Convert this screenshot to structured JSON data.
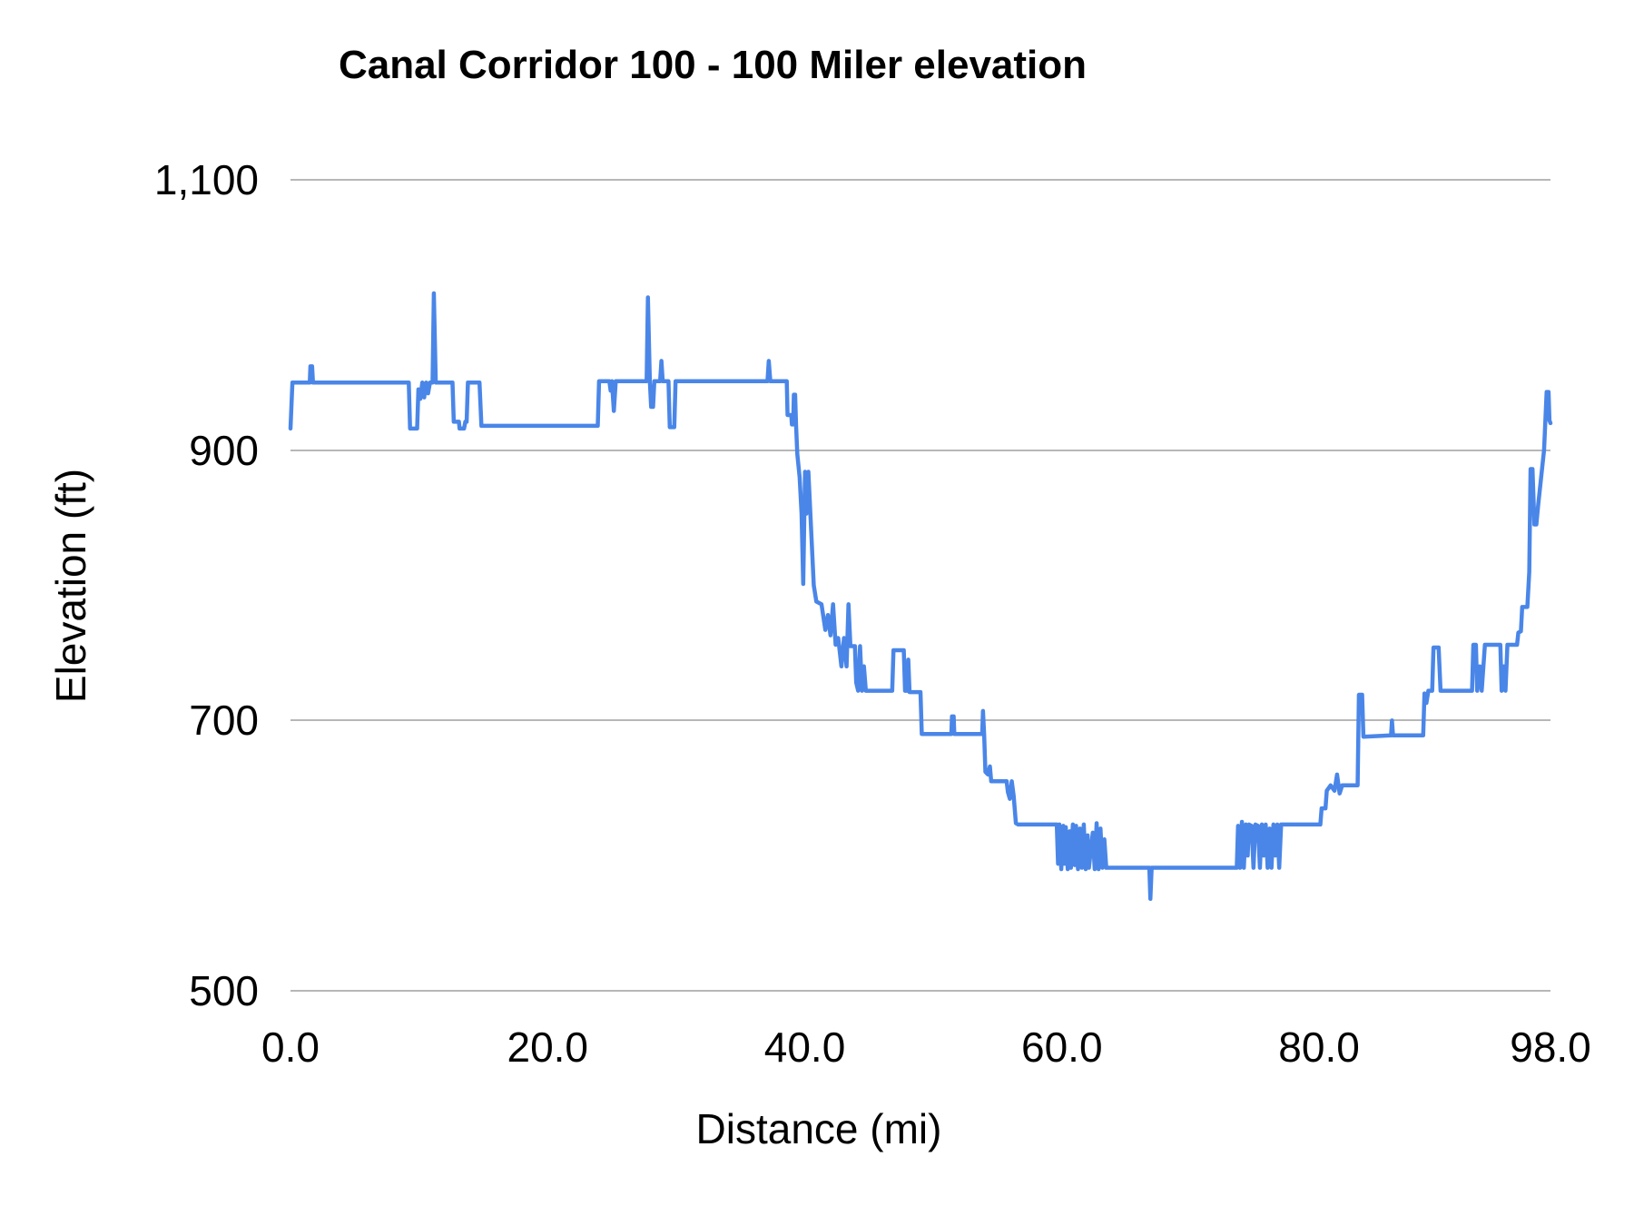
{
  "chart_data": {
    "type": "line",
    "title": "Canal Corridor 100 - 100 Miler elevation",
    "xlabel": "Distance (mi)",
    "ylabel": "Elevation (ft)",
    "xlim": [
      0,
      98
    ],
    "ylim": [
      500,
      1100
    ],
    "grid": "horizontal-only",
    "legend": "none",
    "line_color": "#4a86e8",
    "gridline_color": "#b7b7b7",
    "x_ticks": [
      {
        "value": 0,
        "label": "0.0"
      },
      {
        "value": 20,
        "label": "20.0"
      },
      {
        "value": 40,
        "label": "40.0"
      },
      {
        "value": 60,
        "label": "60.0"
      },
      {
        "value": 80,
        "label": "80.0"
      },
      {
        "value": 98,
        "label": "98.0"
      }
    ],
    "y_ticks": [
      {
        "value": 500,
        "label": "500"
      },
      {
        "value": 700,
        "label": "700"
      },
      {
        "value": 900,
        "label": "900"
      },
      {
        "value": 1100,
        "label": "1,100"
      }
    ],
    "series": [
      {
        "name": "elevation",
        "points": [
          [
            0,
            916
          ],
          [
            0.15,
            950
          ],
          [
            1.5,
            950
          ],
          [
            1.55,
            962
          ],
          [
            1.68,
            962
          ],
          [
            1.75,
            950
          ],
          [
            9.2,
            950
          ],
          [
            9.3,
            916
          ],
          [
            9.85,
            916
          ],
          [
            9.95,
            945
          ],
          [
            10.1,
            938
          ],
          [
            10.25,
            950
          ],
          [
            10.4,
            939
          ],
          [
            10.55,
            950
          ],
          [
            10.7,
            942
          ],
          [
            10.85,
            950
          ],
          [
            11.05,
            950
          ],
          [
            11.15,
            1016
          ],
          [
            11.3,
            950
          ],
          [
            12.6,
            950
          ],
          [
            12.7,
            921
          ],
          [
            13.1,
            921
          ],
          [
            13.15,
            916
          ],
          [
            13.5,
            916
          ],
          [
            13.6,
            921
          ],
          [
            13.7,
            921
          ],
          [
            13.8,
            950
          ],
          [
            14.7,
            950
          ],
          [
            14.85,
            918
          ],
          [
            23.9,
            918
          ],
          [
            24.0,
            951
          ],
          [
            24.8,
            951
          ],
          [
            24.9,
            944
          ],
          [
            25.0,
            951
          ],
          [
            25.15,
            929
          ],
          [
            25.3,
            951
          ],
          [
            27.7,
            951
          ],
          [
            27.8,
            1013
          ],
          [
            27.95,
            951
          ],
          [
            28.05,
            932
          ],
          [
            28.2,
            932
          ],
          [
            28.3,
            951
          ],
          [
            28.75,
            951
          ],
          [
            28.85,
            966
          ],
          [
            28.95,
            951
          ],
          [
            29.4,
            951
          ],
          [
            29.5,
            917
          ],
          [
            29.85,
            917
          ],
          [
            29.95,
            951
          ],
          [
            37.1,
            951
          ],
          [
            37.2,
            966
          ],
          [
            37.32,
            951
          ],
          [
            38.6,
            951
          ],
          [
            38.66,
            926
          ],
          [
            38.95,
            926
          ],
          [
            39.0,
            919
          ],
          [
            39.1,
            919
          ],
          [
            39.15,
            941
          ],
          [
            39.25,
            941
          ],
          [
            39.32,
            919
          ],
          [
            39.42,
            897
          ],
          [
            39.6,
            880
          ],
          [
            39.75,
            853
          ],
          [
            39.88,
            801
          ],
          [
            40.02,
            884
          ],
          [
            40.12,
            853
          ],
          [
            40.28,
            884
          ],
          [
            40.5,
            840
          ],
          [
            40.7,
            800
          ],
          [
            40.9,
            788
          ],
          [
            41.3,
            786
          ],
          [
            41.6,
            767
          ],
          [
            41.8,
            778
          ],
          [
            42.0,
            763
          ],
          [
            42.2,
            786
          ],
          [
            42.4,
            756
          ],
          [
            42.6,
            761
          ],
          [
            42.85,
            740
          ],
          [
            43.05,
            761
          ],
          [
            43.25,
            740
          ],
          [
            43.4,
            786
          ],
          [
            43.55,
            755
          ],
          [
            43.9,
            755
          ],
          [
            44.0,
            728
          ],
          [
            44.15,
            722
          ],
          [
            44.3,
            755
          ],
          [
            44.45,
            722
          ],
          [
            44.6,
            740
          ],
          [
            44.75,
            722
          ],
          [
            46.8,
            722
          ],
          [
            46.9,
            752
          ],
          [
            47.7,
            752
          ],
          [
            47.8,
            722
          ],
          [
            48.0,
            722
          ],
          [
            48.05,
            745
          ],
          [
            48.15,
            721
          ],
          [
            49.0,
            721
          ],
          [
            49.1,
            690
          ],
          [
            51.4,
            690
          ],
          [
            51.45,
            703
          ],
          [
            51.58,
            703
          ],
          [
            51.63,
            690
          ],
          [
            53.8,
            690
          ],
          [
            53.86,
            707
          ],
          [
            53.95,
            690
          ],
          [
            54.05,
            662
          ],
          [
            54.25,
            660
          ],
          [
            54.4,
            666
          ],
          [
            54.5,
            655
          ],
          [
            55.7,
            655
          ],
          [
            55.8,
            647
          ],
          [
            55.95,
            642
          ],
          [
            56.1,
            655
          ],
          [
            56.25,
            644
          ],
          [
            56.42,
            624
          ],
          [
            56.6,
            623
          ],
          [
            59.6,
            623
          ],
          [
            59.7,
            594
          ],
          [
            59.8,
            623
          ],
          [
            59.95,
            590
          ],
          [
            60.1,
            622
          ],
          [
            60.2,
            594
          ],
          [
            60.3,
            621
          ],
          [
            60.45,
            590
          ],
          [
            60.6,
            618
          ],
          [
            60.7,
            591
          ],
          [
            60.85,
            623
          ],
          [
            61.0,
            593
          ],
          [
            61.1,
            622
          ],
          [
            61.25,
            590
          ],
          [
            61.4,
            620
          ],
          [
            61.55,
            591
          ],
          [
            61.7,
            623
          ],
          [
            61.85,
            590
          ],
          [
            62.0,
            615
          ],
          [
            62.1,
            591
          ],
          [
            62.25,
            604
          ],
          [
            62.4,
            617
          ],
          [
            62.55,
            590
          ],
          [
            62.7,
            624
          ],
          [
            62.85,
            590
          ],
          [
            63.0,
            620
          ],
          [
            63.15,
            591
          ],
          [
            63.3,
            612
          ],
          [
            63.45,
            591
          ],
          [
            63.6,
            591
          ],
          [
            66.8,
            591
          ],
          [
            66.88,
            568
          ],
          [
            66.98,
            591
          ],
          [
            73.6,
            591
          ],
          [
            73.7,
            622
          ],
          [
            73.85,
            591
          ],
          [
            74.0,
            625
          ],
          [
            74.15,
            591
          ],
          [
            74.3,
            623
          ],
          [
            74.45,
            600
          ],
          [
            74.55,
            623
          ],
          [
            74.75,
            622
          ],
          [
            74.9,
            591
          ],
          [
            75.05,
            623
          ],
          [
            75.25,
            622
          ],
          [
            75.4,
            591
          ],
          [
            75.55,
            623
          ],
          [
            75.7,
            600
          ],
          [
            75.85,
            623
          ],
          [
            76.0,
            591
          ],
          [
            76.15,
            620
          ],
          [
            76.3,
            591
          ],
          [
            76.45,
            623
          ],
          [
            76.6,
            600
          ],
          [
            76.75,
            623
          ],
          [
            76.9,
            591
          ],
          [
            77.05,
            623
          ],
          [
            77.2,
            623
          ],
          [
            80.1,
            623
          ],
          [
            80.2,
            635
          ],
          [
            80.5,
            635
          ],
          [
            80.6,
            648
          ],
          [
            80.9,
            652
          ],
          [
            81.2,
            648
          ],
          [
            81.4,
            660
          ],
          [
            81.6,
            646
          ],
          [
            81.8,
            652
          ],
          [
            83.0,
            652
          ],
          [
            83.1,
            719
          ],
          [
            83.35,
            719
          ],
          [
            83.45,
            688
          ],
          [
            85.6,
            689
          ],
          [
            85.67,
            700
          ],
          [
            85.75,
            689
          ],
          [
            88.1,
            689
          ],
          [
            88.2,
            720
          ],
          [
            88.35,
            713
          ],
          [
            88.5,
            722
          ],
          [
            88.8,
            722
          ],
          [
            88.9,
            754
          ],
          [
            89.3,
            754
          ],
          [
            89.45,
            722
          ],
          [
            91.9,
            722
          ],
          [
            92.0,
            756
          ],
          [
            92.2,
            756
          ],
          [
            92.3,
            722
          ],
          [
            92.5,
            740
          ],
          [
            92.65,
            722
          ],
          [
            92.9,
            756
          ],
          [
            94.1,
            756
          ],
          [
            94.2,
            722
          ],
          [
            94.35,
            740
          ],
          [
            94.5,
            722
          ],
          [
            94.65,
            756
          ],
          [
            95.4,
            756
          ],
          [
            95.5,
            765
          ],
          [
            95.7,
            766
          ],
          [
            95.8,
            784
          ],
          [
            96.2,
            784
          ],
          [
            96.35,
            810
          ],
          [
            96.45,
            886
          ],
          [
            96.6,
            886
          ],
          [
            96.75,
            845
          ],
          [
            96.9,
            845
          ],
          [
            97.05,
            860
          ],
          [
            97.5,
            900
          ],
          [
            97.7,
            943
          ],
          [
            97.85,
            943
          ],
          [
            97.92,
            922
          ],
          [
            98,
            920
          ]
        ]
      }
    ]
  }
}
